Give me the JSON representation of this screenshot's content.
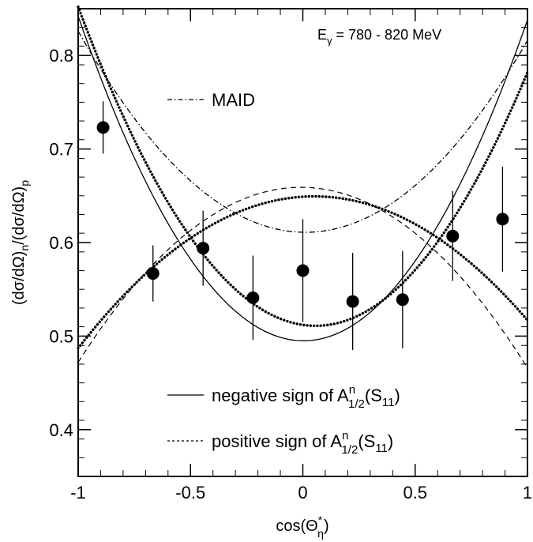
{
  "chart_data": {
    "type": "scatter",
    "title_parts": {
      "base": "E",
      "sub": "γ",
      "rest": " = 780 - 820 MeV"
    },
    "xlabel_parts": {
      "base": "cos(Θ",
      "sup": "*",
      "sub": "η",
      "close": ")"
    },
    "ylabel_parts": {
      "a": "(dσ/dΩ)",
      "asub": "n",
      "b": "/(dσ/dΩ)",
      "bsub": "p"
    },
    "xlim": [
      -1,
      1
    ],
    "ylim": [
      0.35,
      0.85
    ],
    "x_ticks": [
      -1,
      -0.5,
      0,
      0.5,
      1
    ],
    "x_tick_labels": [
      "-1",
      "-0.5",
      "0",
      "0.5",
      "1"
    ],
    "y_ticks": [
      0.4,
      0.5,
      0.6,
      0.7,
      0.8
    ],
    "y_tick_labels": [
      "0.4",
      "0.5",
      "0.6",
      "0.7",
      "0.8"
    ],
    "points": {
      "x": [
        -0.889,
        -0.667,
        -0.444,
        -0.222,
        0.0,
        0.222,
        0.444,
        0.667,
        0.889
      ],
      "y": [
        0.723,
        0.567,
        0.594,
        0.541,
        0.57,
        0.537,
        0.539,
        0.607,
        0.625
      ],
      "err": [
        0.028,
        0.03,
        0.04,
        0.045,
        0.055,
        0.052,
        0.052,
        0.048,
        0.056
      ]
    },
    "series": [
      {
        "name": "MAID",
        "style": "dashdot",
        "curve": "quadratic",
        "a": 0.611,
        "b": -0.005,
        "c": 0.21
      },
      {
        "name": "negative sign of A",
        "style": "solid",
        "curve": "quadratic",
        "a": 0.495,
        "b": -0.002,
        "c": 0.345
      },
      {
        "name": "positive sign of A",
        "style": "dashed",
        "curve": "quadratic",
        "a": 0.659,
        "b": -0.003,
        "c": -0.19
      },
      {
        "style": "dotted-a",
        "curve": "quadratic",
        "a": 0.512,
        "b": -0.035,
        "c": 0.305
      },
      {
        "style": "dotted-b",
        "curve": "quadratic",
        "a": 0.649,
        "b": 0.015,
        "c": -0.147
      }
    ],
    "legend": [
      {
        "label": "MAID",
        "style": "dashdot"
      },
      {
        "label_parts": {
          "pre": "negative sign of A",
          "sup": "n",
          "sub": "1/2",
          "mid": "(S",
          "sub2": "11",
          "close": ")"
        },
        "style": "solid"
      },
      {
        "label_parts": {
          "pre": "positive sign of A",
          "sup": "n",
          "sub": "1/2",
          "mid": "(S",
          "sub2": "11",
          "close": ")"
        },
        "style": "dashed"
      }
    ],
    "grid": false,
    "colors": {
      "line": "#000000",
      "marker": "#000000",
      "background": "#ffffff"
    }
  }
}
